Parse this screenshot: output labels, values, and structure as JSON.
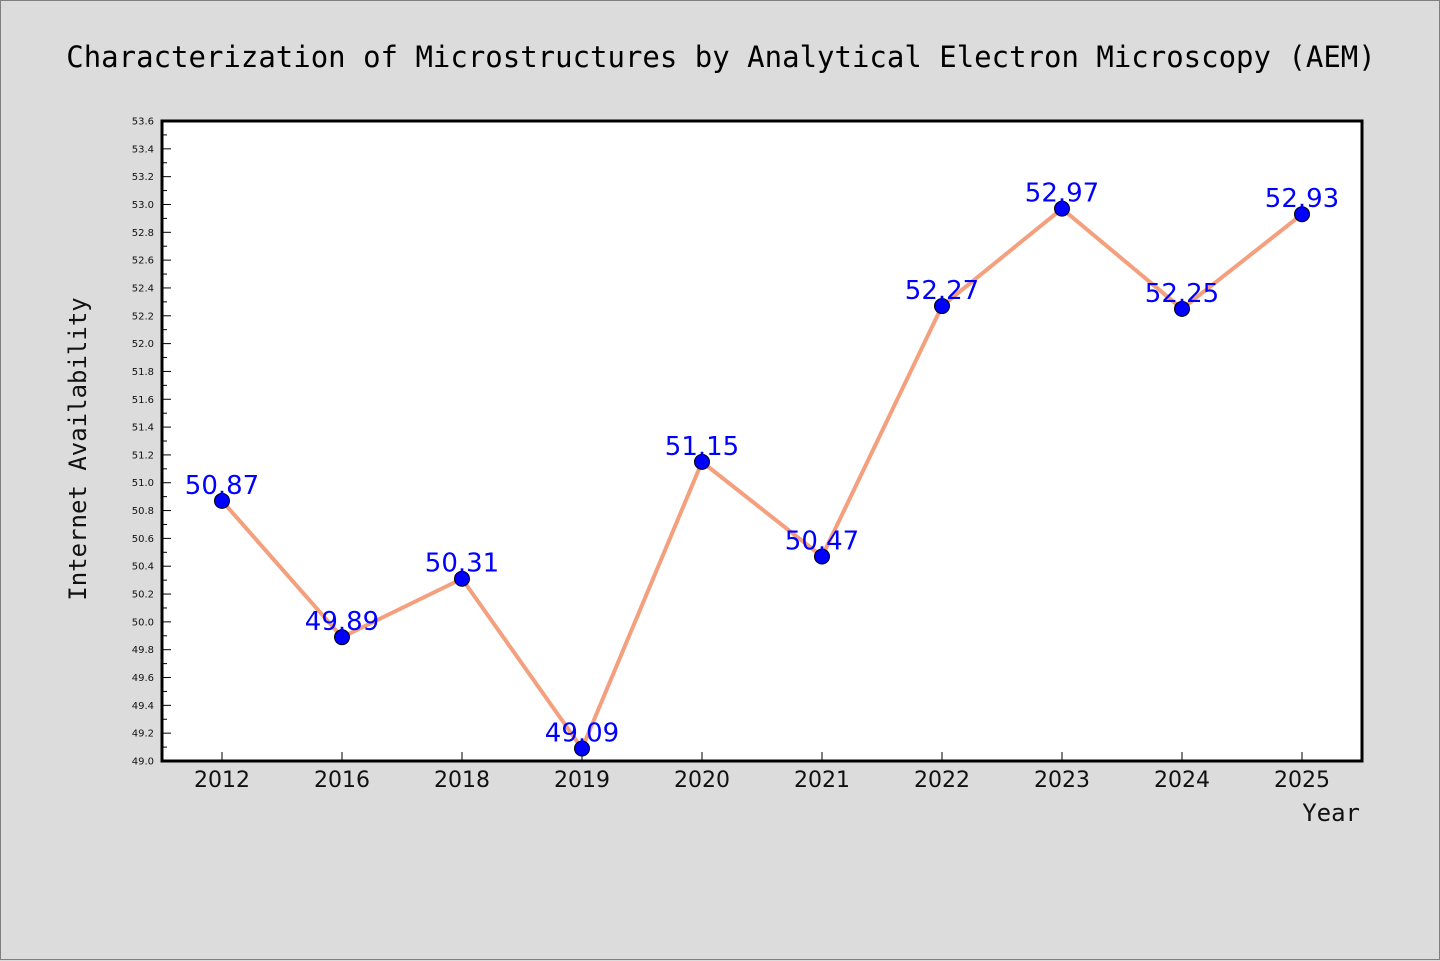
{
  "chart_data": {
    "type": "line",
    "title": "Characterization of Microstructures by Analytical Electron Microscopy (AEM)",
    "xlabel": "Year",
    "ylabel": "Internet Availability",
    "categories": [
      "2012",
      "2016",
      "2018",
      "2019",
      "2020",
      "2021",
      "2022",
      "2023",
      "2024",
      "2025"
    ],
    "series": [
      {
        "values": [
          50.87,
          49.89,
          50.31,
          49.09,
          51.15,
          50.47,
          52.27,
          52.97,
          52.25,
          52.93
        ],
        "labels": [
          "50.87",
          "49.89",
          "50.31",
          "49.09",
          "51.15",
          "50.47",
          "52.27",
          "52.97",
          "52.25",
          "52.93"
        ]
      }
    ],
    "ylim": [
      49.0,
      53.6
    ],
    "yticks": [
      "49.0",
      "49.2",
      "49.4",
      "49.6",
      "49.8",
      "50.0",
      "50.2",
      "50.4",
      "50.6",
      "50.8",
      "51.0",
      "51.2",
      "51.4",
      "51.6",
      "51.8",
      "52.0",
      "52.2",
      "52.4",
      "52.6",
      "52.8",
      "53.0",
      "53.2",
      "53.4",
      "53.6"
    ],
    "grid": false,
    "legend": "none",
    "colors": {
      "line": "#f4a07e",
      "marker": "#0000ff",
      "marker_edge": "#000000",
      "data_label": "#0000ff",
      "plot_background": "#ffffff",
      "figure_background": "#dcdcdc"
    }
  }
}
